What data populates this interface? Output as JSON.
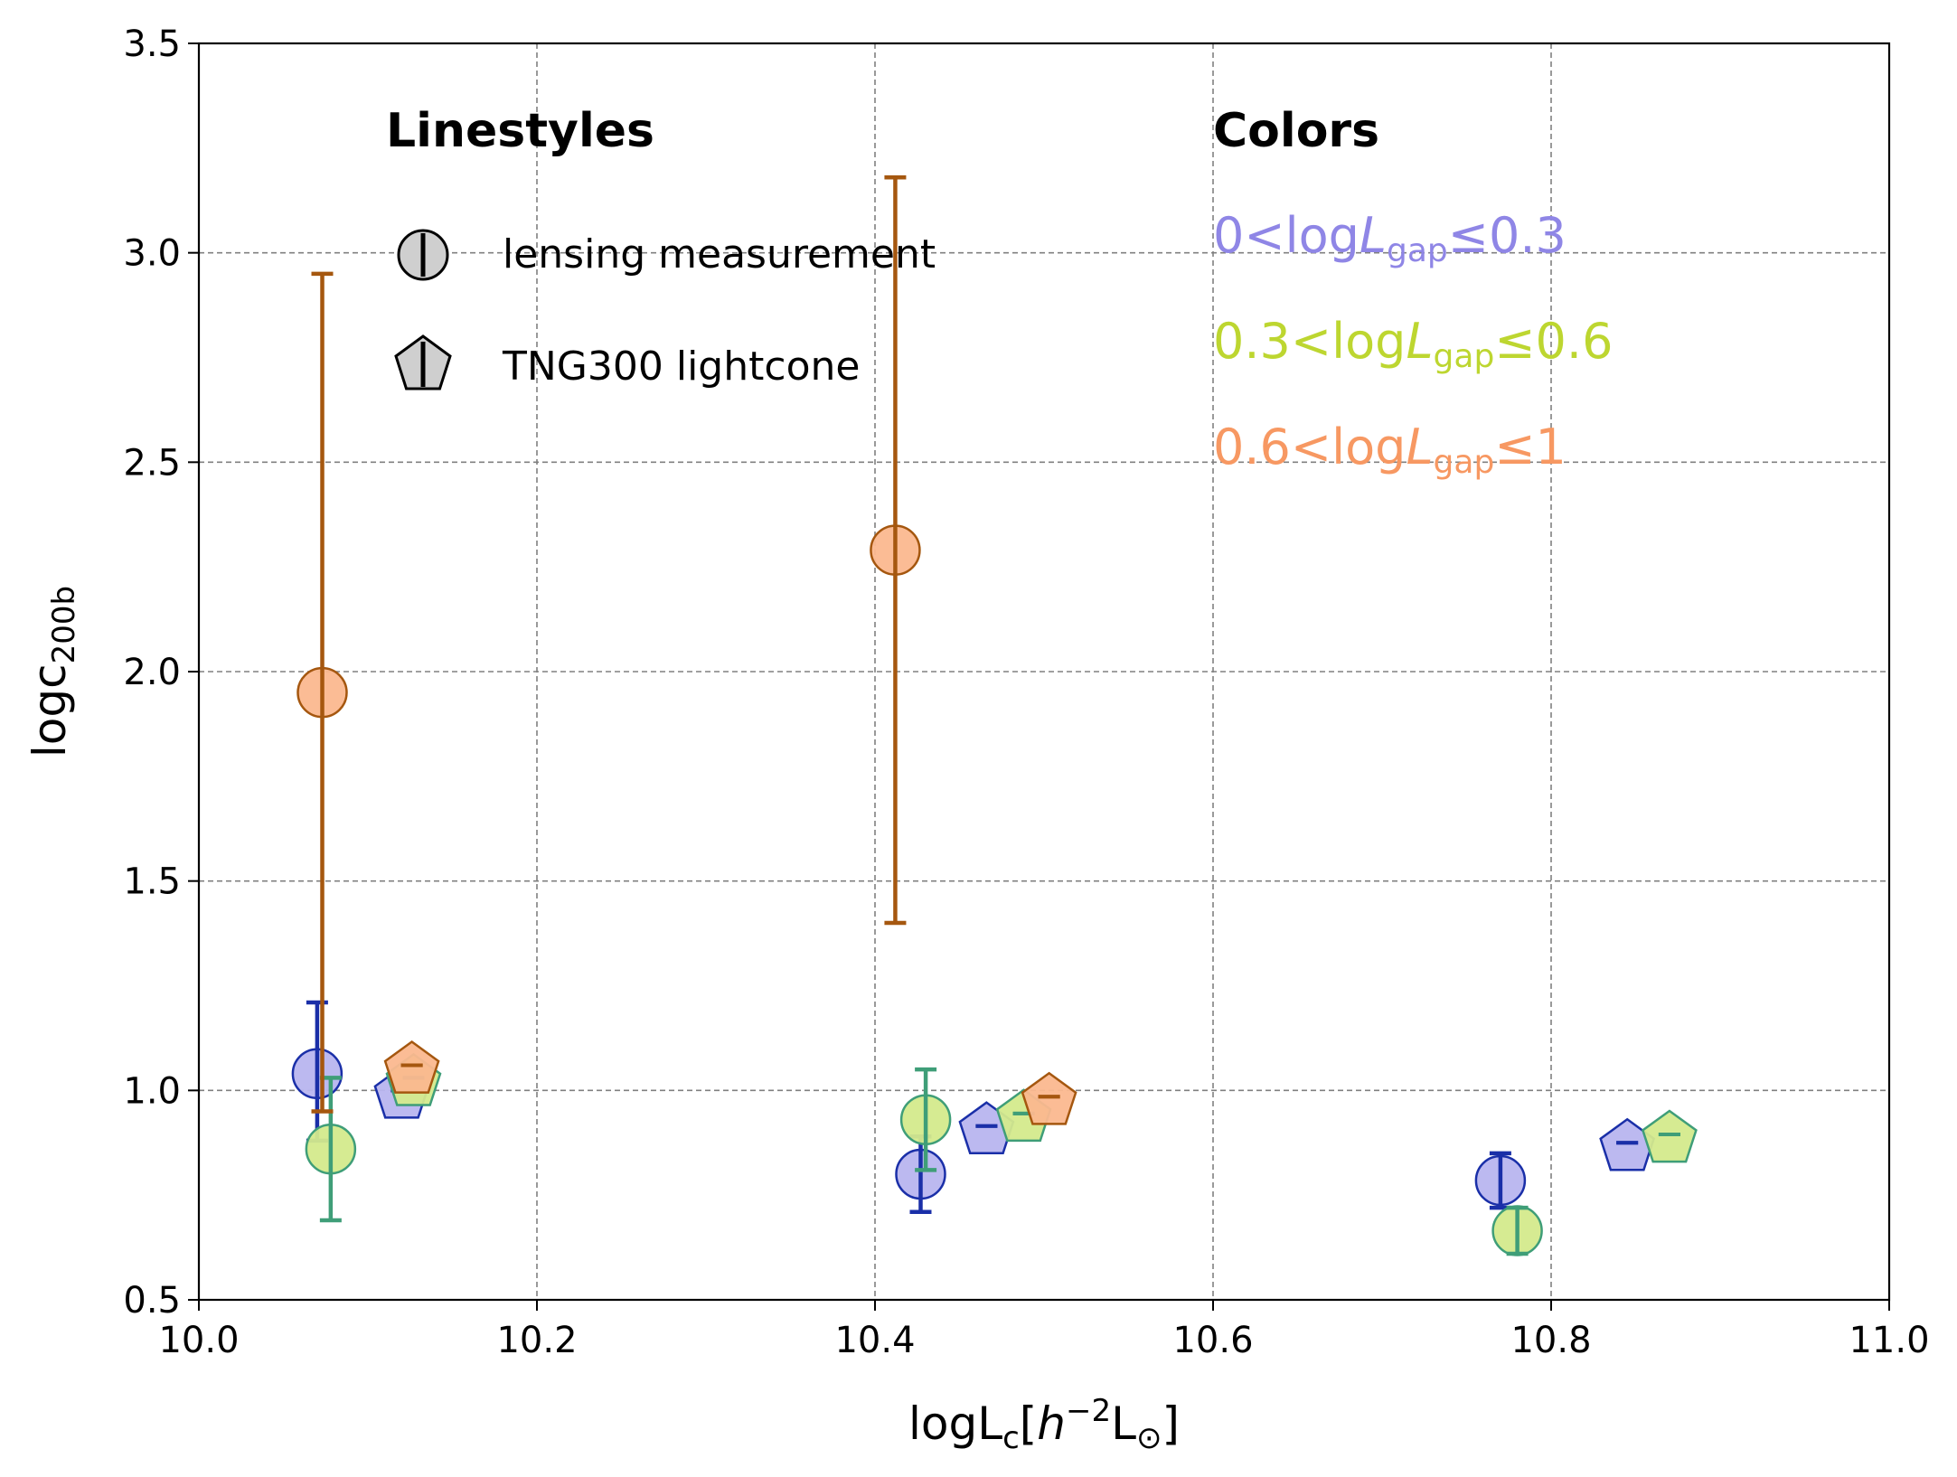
{
  "chart_data": {
    "type": "scatter",
    "xlabel": {
      "base": "logL",
      "sub": "c",
      "bracket_open": "[",
      "h": "h",
      "sup": "−2",
      "unit": "L",
      "sun": "⊙",
      "bracket_close": "]"
    },
    "ylabel": {
      "base": "logc",
      "sub": "200b"
    },
    "xlim": [
      10.0,
      11.0
    ],
    "ylim": [
      0.5,
      3.5
    ],
    "x_ticks": [
      10.0,
      10.2,
      10.4,
      10.6,
      10.8,
      11.0
    ],
    "x_tick_labels": [
      "10.0",
      "10.2",
      "10.4",
      "10.6",
      "10.8",
      "11.0"
    ],
    "y_ticks": [
      0.5,
      1.0,
      1.5,
      2.0,
      2.5,
      3.0,
      3.5
    ],
    "y_tick_labels": [
      "0.5",
      "1.0",
      "1.5",
      "2.0",
      "2.5",
      "3.0",
      "3.5"
    ],
    "grid": true,
    "legend_linestyles": {
      "title": "Linestyles",
      "entries": [
        {
          "label": "lensing measurement",
          "marker": "circle"
        },
        {
          "label": "TNG300 lightcone",
          "marker": "pentagon"
        }
      ]
    },
    "legend_colors": {
      "title": "Colors",
      "entries": [
        {
          "pre": "0<log",
          "L": "L",
          "sub": "gap",
          "post": "≤0.3",
          "color": "#8f86e6"
        },
        {
          "pre": "0.3<log",
          "L": "L",
          "sub": "gap",
          "post": "≤0.6",
          "color": "#bdd630"
        },
        {
          "pre": "0.6<log",
          "L": "L",
          "sub": "gap",
          "post": "≤1",
          "color": "#f79862"
        }
      ]
    },
    "series": [
      {
        "name": "0<logLgap≤0.3",
        "fill": "#b8b5ef",
        "edge": "#1a2fa8",
        "err_color": "#1a2fa8",
        "lensing": [
          {
            "x": 10.07,
            "y": 1.04,
            "ylo": 0.88,
            "yhi": 1.21
          },
          {
            "x": 10.427,
            "y": 0.8,
            "ylo": 0.71,
            "yhi": 0.89
          },
          {
            "x": 10.77,
            "y": 0.785,
            "ylo": 0.72,
            "yhi": 0.85
          }
        ],
        "tng": [
          {
            "x": 10.12,
            "y": 1.0,
            "ylo": 1.0,
            "yhi": 1.0
          },
          {
            "x": 10.466,
            "y": 0.915,
            "ylo": 0.915,
            "yhi": 0.915
          },
          {
            "x": 10.845,
            "y": 0.875,
            "ylo": 0.875,
            "yhi": 0.875
          }
        ]
      },
      {
        "name": "0.3<logLgap≤0.6",
        "fill": "#d4ea8c",
        "edge": "#3f9e78",
        "err_color": "#3f9e78",
        "lensing": [
          {
            "x": 10.078,
            "y": 0.86,
            "ylo": 0.69,
            "yhi": 1.03
          },
          {
            "x": 10.43,
            "y": 0.93,
            "ylo": 0.81,
            "yhi": 1.05
          },
          {
            "x": 10.78,
            "y": 0.665,
            "ylo": 0.61,
            "yhi": 0.72
          }
        ],
        "tng": [
          {
            "x": 10.127,
            "y": 1.03,
            "ylo": 1.03,
            "yhi": 1.03
          },
          {
            "x": 10.488,
            "y": 0.945,
            "ylo": 0.945,
            "yhi": 0.945
          },
          {
            "x": 10.87,
            "y": 0.895,
            "ylo": 0.895,
            "yhi": 0.895
          }
        ]
      },
      {
        "name": "0.6<logLgap≤1",
        "fill": "#fbb88f",
        "edge": "#a5570f",
        "err_color": "#a5570f",
        "lensing": [
          {
            "x": 10.073,
            "y": 1.95,
            "ylo": 0.95,
            "yhi": 2.95
          },
          {
            "x": 10.412,
            "y": 2.29,
            "ylo": 1.4,
            "yhi": 3.18
          }
        ],
        "tng": [
          {
            "x": 10.126,
            "y": 1.06,
            "ylo": 1.06,
            "yhi": 1.06
          },
          {
            "x": 10.503,
            "y": 0.985,
            "ylo": 0.985,
            "yhi": 0.985
          }
        ]
      }
    ]
  }
}
